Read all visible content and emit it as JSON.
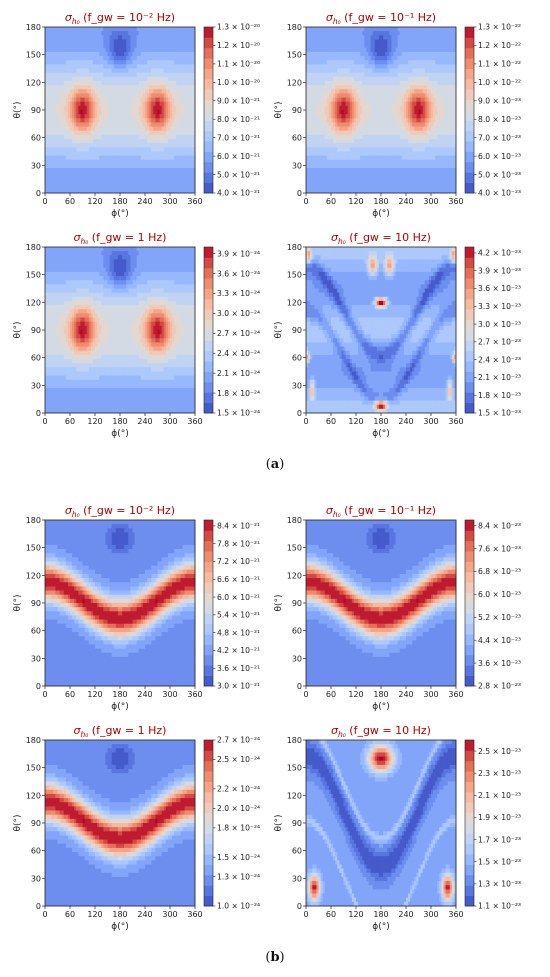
{
  "captions": [
    "(a)",
    "(b)"
  ],
  "axis_labels": {
    "x": "ϕ(°)",
    "y": "θ(°)"
  },
  "title_prefix": "σ",
  "title_sub": "h₀",
  "chart_data": [
    {
      "group": "a",
      "type": "heatmap",
      "title": "σ_h0 (f_gw = 10^-2 Hz)",
      "freq": "f_gw = 10⁻² Hz",
      "pattern": "lobes",
      "xlabel": "ϕ(°)",
      "ylabel": "θ(°)",
      "xlim": [
        0,
        360
      ],
      "ylim": [
        0,
        180
      ],
      "xticks": [
        0,
        60,
        120,
        180,
        240,
        300,
        360
      ],
      "yticks": [
        0,
        30,
        60,
        90,
        120,
        150,
        180
      ],
      "colorbar": {
        "min": 4e-21,
        "max": 1.3e-20,
        "ticks": [
          "4.0 × 10⁻²¹",
          "5.0 × 10⁻²¹",
          "6.0 × 10⁻²¹",
          "7.0 × 10⁻²¹",
          "8.0 × 10⁻²¹",
          "9.0 × 10⁻²¹",
          "1.0 × 10⁻²⁰",
          "1.1 × 10⁻²⁰",
          "1.2 × 10⁻²⁰",
          "1.3 × 10⁻²⁰"
        ]
      }
    },
    {
      "group": "a",
      "type": "heatmap",
      "title": "σ_h0 (f_gw = 10^-1 Hz)",
      "freq": "f_gw = 10⁻¹ Hz",
      "pattern": "lobes",
      "xlabel": "ϕ(°)",
      "ylabel": "θ(°)",
      "xlim": [
        0,
        360
      ],
      "ylim": [
        0,
        180
      ],
      "xticks": [
        0,
        60,
        120,
        180,
        240,
        300,
        360
      ],
      "yticks": [
        0,
        30,
        60,
        90,
        120,
        150,
        180
      ],
      "colorbar": {
        "min": 4e-23,
        "max": 1.3e-22,
        "ticks": [
          "4.0 × 10⁻²³",
          "5.0 × 10⁻²³",
          "6.0 × 10⁻²³",
          "7.0 × 10⁻²³",
          "8.0 × 10⁻²³",
          "9.0 × 10⁻²³",
          "1.0 × 10⁻²²",
          "1.1 × 10⁻²²",
          "1.2 × 10⁻²²",
          "1.3 × 10⁻²²"
        ]
      }
    },
    {
      "group": "a",
      "type": "heatmap",
      "title": "σ_h0 (f_gw = 1 Hz)",
      "freq": "f_gw = 1 Hz",
      "pattern": "lobes",
      "xlabel": "ϕ(°)",
      "ylabel": "θ(°)",
      "xlim": [
        0,
        360
      ],
      "ylim": [
        0,
        180
      ],
      "xticks": [
        0,
        60,
        120,
        180,
        240,
        300,
        360
      ],
      "yticks": [
        0,
        30,
        60,
        90,
        120,
        150,
        180
      ],
      "colorbar": {
        "min": 1.5e-24,
        "max": 4e-24,
        "ticks": [
          "1.5 × 10⁻²⁴",
          "1.8 × 10⁻²⁴",
          "2.1 × 10⁻²⁴",
          "2.4 × 10⁻²⁴",
          "2.7 × 10⁻²⁴",
          "3.0 × 10⁻²⁴",
          "3.3 × 10⁻²⁴",
          "3.6 × 10⁻²⁴",
          "3.9 × 10⁻²⁴"
        ]
      }
    },
    {
      "group": "a",
      "type": "heatmap",
      "title": "σ_h0 (f_gw = 10 Hz)",
      "freq": "f_gw = 10 Hz",
      "pattern": "hf_a",
      "xlabel": "ϕ(°)",
      "ylabel": "θ(°)",
      "xlim": [
        0,
        360
      ],
      "ylim": [
        0,
        180
      ],
      "xticks": [
        0,
        60,
        120,
        180,
        240,
        300,
        360
      ],
      "yticks": [
        0,
        30,
        60,
        90,
        120,
        150,
        180
      ],
      "colorbar": {
        "min": 1.5e-23,
        "max": 4.3e-23,
        "ticks": [
          "1.5 × 10⁻²³",
          "1.8 × 10⁻²³",
          "2.1 × 10⁻²³",
          "2.4 × 10⁻²³",
          "2.7 × 10⁻²³",
          "3.0 × 10⁻²³",
          "3.3 × 10⁻²³",
          "3.6 × 10⁻²³",
          "3.9 × 10⁻²³",
          "4.2 × 10⁻²³"
        ]
      }
    },
    {
      "group": "b",
      "type": "heatmap",
      "title": "σ_h0 (f_gw = 10^-2 Hz)",
      "freq": "f_gw = 10⁻² Hz",
      "pattern": "wave",
      "xlabel": "ϕ(°)",
      "ylabel": "θ(°)",
      "xlim": [
        0,
        360
      ],
      "ylim": [
        0,
        180
      ],
      "xticks": [
        0,
        60,
        120,
        180,
        240,
        300,
        360
      ],
      "yticks": [
        0,
        30,
        60,
        90,
        120,
        150,
        180
      ],
      "colorbar": {
        "min": 3e-21,
        "max": 8.6e-21,
        "ticks": [
          "3.0 × 10⁻²¹",
          "3.6 × 10⁻²¹",
          "4.2 × 10⁻²¹",
          "4.8 × 10⁻²¹",
          "5.4 × 10⁻²¹",
          "6.0 × 10⁻²¹",
          "6.6 × 10⁻²¹",
          "7.2 × 10⁻²¹",
          "7.8 × 10⁻²¹",
          "8.4 × 10⁻²¹"
        ]
      }
    },
    {
      "group": "b",
      "type": "heatmap",
      "title": "σ_h0 (f_gw = 10^-1 Hz)",
      "freq": "f_gw = 10⁻¹ Hz",
      "pattern": "wave",
      "xlabel": "ϕ(°)",
      "ylabel": "θ(°)",
      "xlim": [
        0,
        360
      ],
      "ylim": [
        0,
        180
      ],
      "xticks": [
        0,
        60,
        120,
        180,
        240,
        300,
        360
      ],
      "yticks": [
        0,
        30,
        60,
        90,
        120,
        150,
        180
      ],
      "colorbar": {
        "min": 2.8e-23,
        "max": 8.6e-23,
        "ticks": [
          "2.8 × 10⁻²³",
          "3.6 × 10⁻²³",
          "4.4 × 10⁻²³",
          "5.2 × 10⁻²³",
          "6.0 × 10⁻²³",
          "6.8 × 10⁻²³",
          "7.6 × 10⁻²³",
          "8.4 × 10⁻²³"
        ]
      }
    },
    {
      "group": "b",
      "type": "heatmap",
      "title": "σ_h0 (f_gw = 1 Hz)",
      "freq": "f_gw = 1 Hz",
      "pattern": "wave",
      "xlabel": "ϕ(°)",
      "ylabel": "θ(°)",
      "xlim": [
        0,
        360
      ],
      "ylim": [
        0,
        180
      ],
      "xticks": [
        0,
        60,
        120,
        180,
        240,
        300,
        360
      ],
      "yticks": [
        0,
        30,
        60,
        90,
        120,
        150,
        180
      ],
      "colorbar": {
        "min": 1e-24,
        "max": 2.7e-24,
        "ticks": [
          "1.0 × 10⁻²⁴",
          "1.3 × 10⁻²⁴",
          "1.5 × 10⁻²⁴",
          "1.8 × 10⁻²⁴",
          "2.0 × 10⁻²⁴",
          "2.2 × 10⁻²⁴",
          "2.5 × 10⁻²⁴",
          "2.7 × 10⁻²⁴"
        ]
      }
    },
    {
      "group": "b",
      "type": "heatmap",
      "title": "σ_h0 (f_gw = 10 Hz)",
      "freq": "f_gw = 10 Hz",
      "pattern": "hf_b",
      "xlabel": "ϕ(°)",
      "ylabel": "θ(°)",
      "xlim": [
        0,
        360
      ],
      "ylim": [
        0,
        180
      ],
      "xticks": [
        0,
        60,
        120,
        180,
        240,
        300,
        360
      ],
      "yticks": [
        0,
        30,
        60,
        90,
        120,
        150,
        180
      ],
      "colorbar": {
        "min": 1.1e-23,
        "max": 2.6e-23,
        "ticks": [
          "1.1 × 10⁻²³",
          "1.3 × 10⁻²³",
          "1.5 × 10⁻²³",
          "1.7 × 10⁻²³",
          "1.9 × 10⁻²³",
          "2.1 × 10⁻²³",
          "2.3 × 10⁻²³",
          "2.5 × 10⁻²³"
        ]
      }
    }
  ]
}
